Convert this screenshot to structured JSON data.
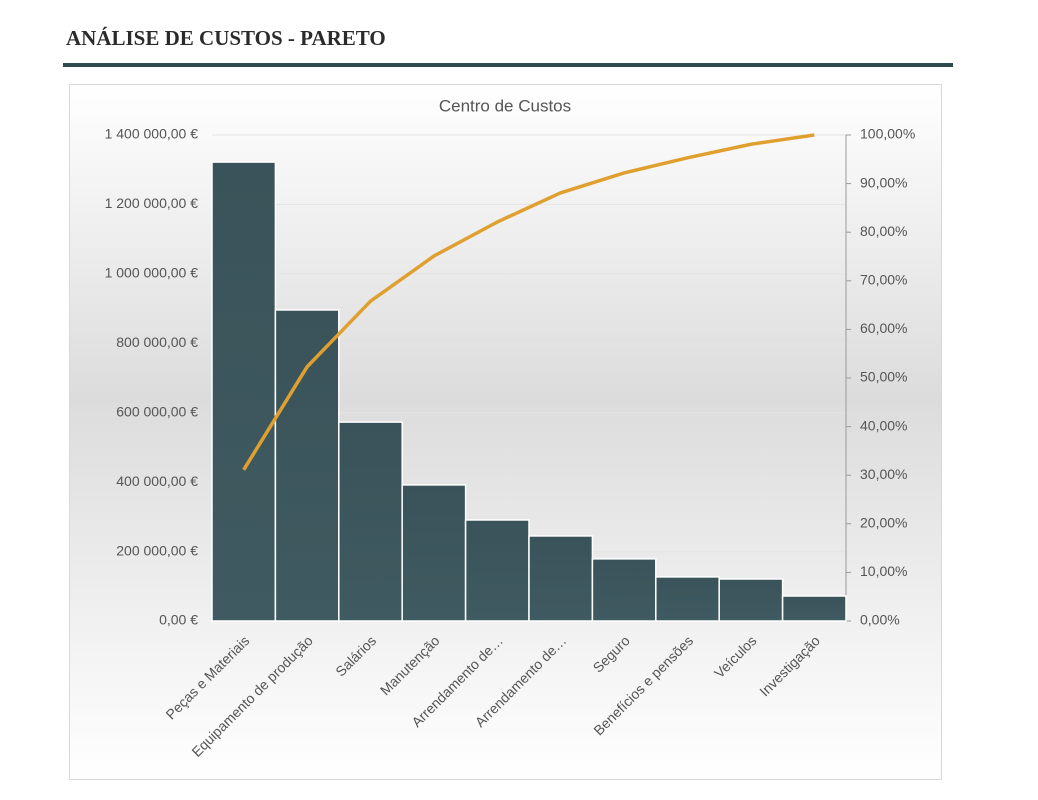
{
  "header": {
    "title": "ANÁLISE DE CUSTOS - PARETO"
  },
  "chart_data": {
    "type": "pareto",
    "title": "Centro de Custos",
    "categories": [
      "Peças e Materiais",
      "Equipamento de produção",
      "Salários",
      "Manutenção",
      "Arrendamento de…",
      "Arrendamento de…",
      "Seguro",
      "Benefícios e pensões",
      "Veículos",
      "Investigação"
    ],
    "series": [
      {
        "type": "bar",
        "color": "#3a555c",
        "values": [
          1322000,
          896000,
          573000,
          392000,
          291000,
          245000,
          179000,
          127000,
          121000,
          72000
        ]
      },
      {
        "type": "line",
        "axis": "y2",
        "color": "#e0a030",
        "values": [
          31.1,
          52.3,
          65.8,
          75.1,
          82.1,
          88.1,
          92.2,
          95.3,
          98.1,
          100
        ]
      }
    ],
    "ylim": [
      0,
      1400000
    ],
    "yticks": [
      {
        "value": 0,
        "label": "0,00 €"
      },
      {
        "value": 200000,
        "label": "200 000,00 €"
      },
      {
        "value": 400000,
        "label": "400 000,00 €"
      },
      {
        "value": 600000,
        "label": "600 000,00 €"
      },
      {
        "value": 800000,
        "label": "800 000,00 €"
      },
      {
        "value": 1000000,
        "label": "1 000 000,00 €"
      },
      {
        "value": 1200000,
        "label": "1 200 000,00 €"
      },
      {
        "value": 1400000,
        "label": "1 400 000,00 €"
      }
    ],
    "y2lim": [
      0,
      100
    ],
    "y2ticks": [
      {
        "value": 0,
        "label": "0,00%"
      },
      {
        "value": 10,
        "label": "10,00%"
      },
      {
        "value": 20,
        "label": "20,00%"
      },
      {
        "value": 30,
        "label": "30,00%"
      },
      {
        "value": 40,
        "label": "40,00%"
      },
      {
        "value": 50,
        "label": "50,00%"
      },
      {
        "value": 60,
        "label": "60,00%"
      },
      {
        "value": 70,
        "label": "70,00%"
      },
      {
        "value": 80,
        "label": "80,00%"
      },
      {
        "value": 90,
        "label": "90,00%"
      },
      {
        "value": 100,
        "label": "100,00%"
      }
    ],
    "grid": true
  }
}
